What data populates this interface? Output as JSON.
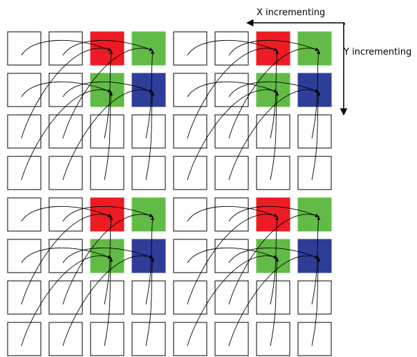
{
  "labels": {
    "x_axis": "X incrementing",
    "y_axis": "Y incrementing"
  },
  "grid": {
    "columns": 8,
    "rows": 8
  },
  "colors": {
    "red": "#ed1c24",
    "green": "#62bb46",
    "blue": "#2e3d98",
    "empty": "#ffffff",
    "stroke": "#000000"
  },
  "pattern": [
    [
      "empty",
      "empty",
      "red",
      "green"
    ],
    [
      "empty",
      "empty",
      "green",
      "blue"
    ],
    [
      "empty",
      "empty",
      "empty",
      "empty"
    ],
    [
      "empty",
      "empty",
      "empty",
      "empty"
    ]
  ]
}
